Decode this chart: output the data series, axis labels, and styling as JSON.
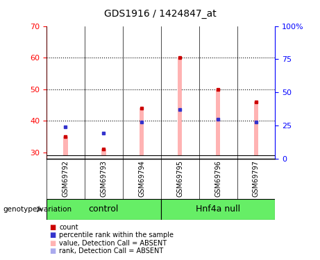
{
  "title": "GDS1916 / 1424847_at",
  "samples": [
    "GSM69792",
    "GSM69793",
    "GSM69794",
    "GSM69795",
    "GSM69796",
    "GSM69797"
  ],
  "group_labels": [
    "control",
    "Hnf4a null"
  ],
  "group_ranges": [
    [
      0,
      3
    ],
    [
      3,
      6
    ]
  ],
  "group_color": "#66ee66",
  "ylim_left": [
    28,
    70
  ],
  "ylim_right": [
    0,
    100
  ],
  "yticks_left": [
    30,
    40,
    50,
    60,
    70
  ],
  "yticks_right": [
    0,
    25,
    50,
    75,
    100
  ],
  "yticklabels_right": [
    "0",
    "25",
    "50",
    "75",
    "100%"
  ],
  "bar_bottom": 29,
  "value_absent": [
    35,
    31,
    44,
    60,
    50,
    46
  ],
  "rank_absent": [
    38,
    36,
    39.5,
    43.5,
    40.5,
    39.5
  ],
  "bar_color_absent": "#ffb3b3",
  "dot_color_count": "#cc0000",
  "dot_color_rank": "#3333cc",
  "dot_color_absent_rank": "#aaaaee",
  "legend_items": [
    {
      "label": "count",
      "color": "#cc0000",
      "marker": "s"
    },
    {
      "label": "percentile rank within the sample",
      "color": "#3333cc",
      "marker": "s"
    },
    {
      "label": "value, Detection Call = ABSENT",
      "color": "#ffb3b3",
      "marker": "s"
    },
    {
      "label": "rank, Detection Call = ABSENT",
      "color": "#aaaaee",
      "marker": "s"
    }
  ],
  "background_color": "#ffffff",
  "plot_bg": "#ffffff",
  "label_area_color": "#cccccc",
  "genotype_label": "genotype/variation",
  "dotted_lines": [
    40,
    50,
    60
  ],
  "bar_width": 0.12
}
